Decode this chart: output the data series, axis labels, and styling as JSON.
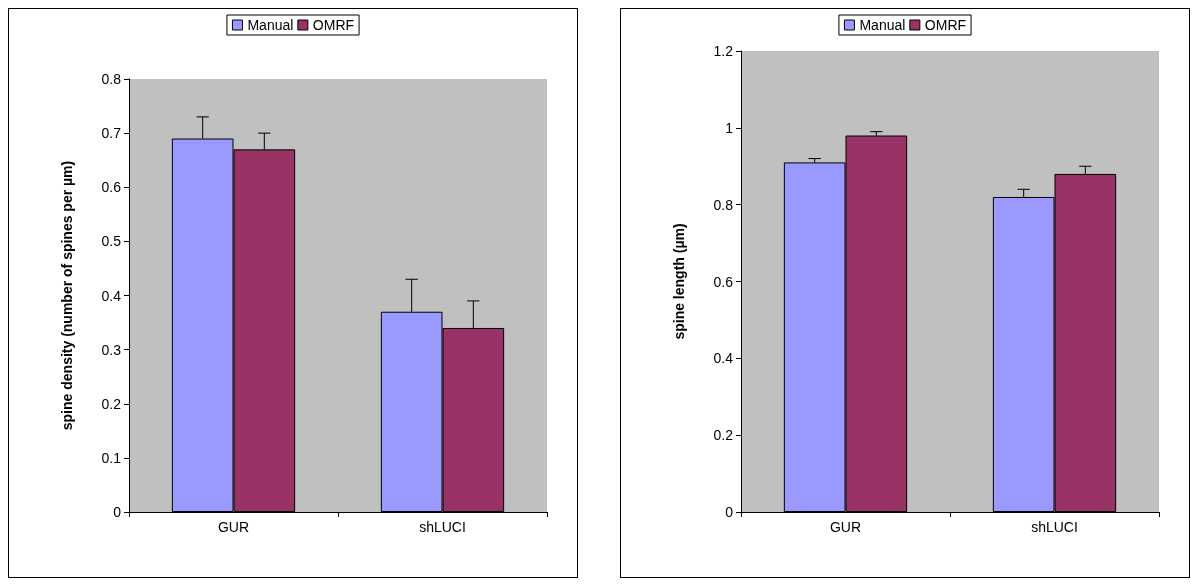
{
  "chart_data": [
    {
      "type": "bar",
      "ylabel": "spine density (number of spines per µm)",
      "categories": [
        "GUR",
        "shLUCI"
      ],
      "series": [
        {
          "name": "Manual",
          "color": "#9999ff",
          "values": [
            0.69,
            0.37
          ],
          "errors": [
            [
              0.69,
              0.73
            ],
            [
              0.37,
              0.43
            ]
          ]
        },
        {
          "name": "OMRF",
          "color": "#993366",
          "values": [
            0.67,
            0.34
          ],
          "errors": [
            [
              0.67,
              0.7
            ],
            [
              0.34,
              0.39
            ]
          ]
        }
      ],
      "ylim": [
        0,
        0.8
      ],
      "yticks": [
        0,
        0.1,
        0.2,
        0.3,
        0.4,
        0.5,
        0.6,
        0.7,
        0.8
      ],
      "grid": false,
      "legend": "top"
    },
    {
      "type": "bar",
      "ylabel": "spine length (µm)",
      "categories": [
        "GUR",
        "shLUCI"
      ],
      "series": [
        {
          "name": "Manual",
          "color": "#9999ff",
          "values": [
            0.91,
            0.82
          ],
          "errors": [
            [
              0.91,
              0.92
            ],
            [
              0.82,
              0.84
            ]
          ]
        },
        {
          "name": "OMRF",
          "color": "#993366",
          "values": [
            0.98,
            0.88
          ],
          "errors": [
            [
              0.98,
              0.99
            ],
            [
              0.88,
              0.9
            ]
          ]
        }
      ],
      "ylim": [
        0,
        1.2
      ],
      "yticks": [
        0,
        0.2,
        0.4,
        0.6,
        0.8,
        1,
        1.2
      ],
      "grid": false,
      "legend": "top"
    }
  ]
}
